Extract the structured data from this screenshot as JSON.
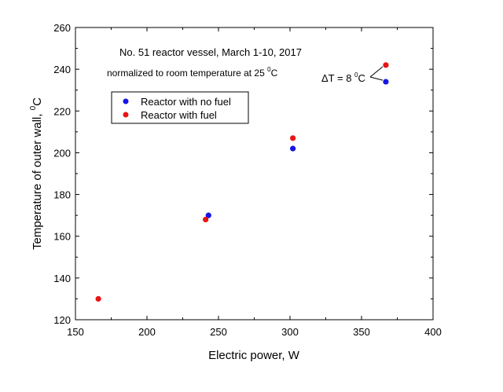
{
  "chart_data": {
    "type": "scatter",
    "title": "No. 51 reactor vessel, March 1-10, 2017",
    "subtitle": "normalized to room temperature at 25 °C",
    "subtitle_parts": {
      "text": "normalized to room temperature at 25 ",
      "sup": "0",
      "unit": "C"
    },
    "xlabel": "Electric power, W",
    "ylabel": "Temperature of outer wall, °C",
    "ylabel_parts": {
      "text": "Temperature of outer wall, ",
      "sup": "0",
      "unit": "C"
    },
    "xlim": [
      150,
      400
    ],
    "ylim": [
      120,
      260
    ],
    "x_ticks": [
      150,
      200,
      250,
      300,
      350,
      400
    ],
    "y_ticks": [
      120,
      140,
      160,
      180,
      200,
      220,
      240,
      260
    ],
    "grid": false,
    "legend_position": "upper-left",
    "series": [
      {
        "name": "Reactor with no fuel",
        "color": "#1515e6",
        "points": [
          {
            "x": 243,
            "y": 170
          },
          {
            "x": 302,
            "y": 202
          },
          {
            "x": 367,
            "y": 234
          }
        ]
      },
      {
        "name": "Reactor with fuel",
        "color": "#e81414",
        "points": [
          {
            "x": 166,
            "y": 130
          },
          {
            "x": 241,
            "y": 168
          },
          {
            "x": 302,
            "y": 207
          },
          {
            "x": 367,
            "y": 242
          }
        ]
      }
    ],
    "annotation": {
      "text": "ΔT = 8 °C",
      "parts": {
        "text": "ΔT = 8 ",
        "sup": "0",
        "unit": "C"
      },
      "from": {
        "x": 367,
        "y": 242
      },
      "to": {
        "x": 367,
        "y": 234
      }
    }
  }
}
